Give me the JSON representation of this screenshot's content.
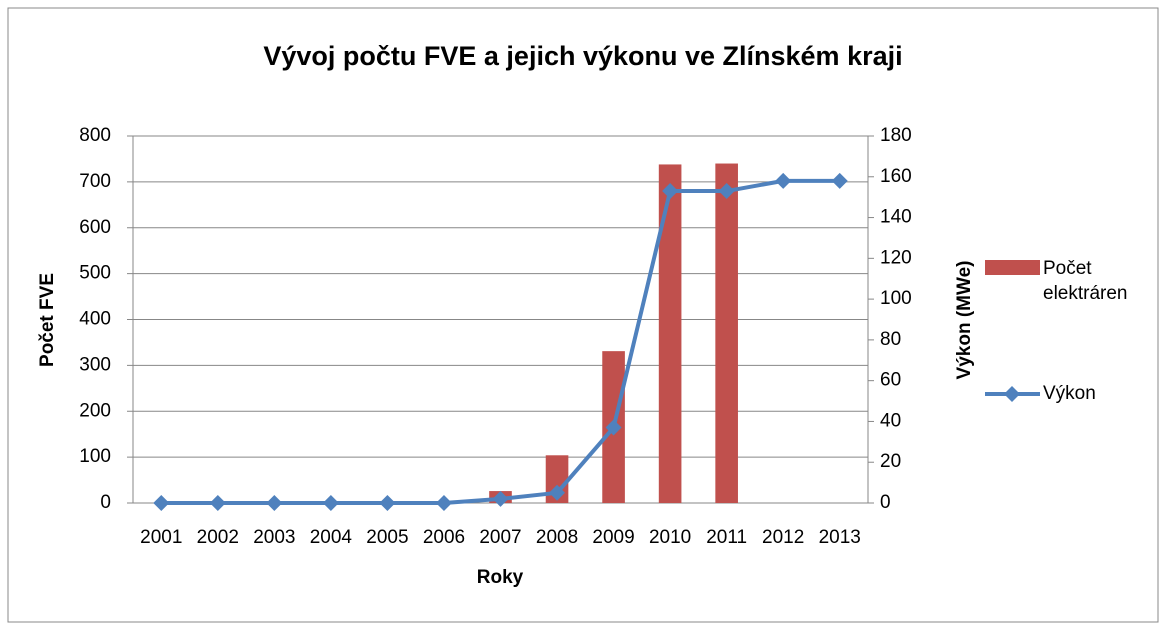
{
  "chart_data": {
    "type": "combo",
    "title": "Vývoj počtu FVE a jejich výkonu ve Zlínském kraji",
    "xlabel": "Roky",
    "ylabel": "Počet FVE",
    "y2label": "Výkon (MWe)",
    "categories": [
      "2001",
      "2002",
      "2003",
      "2004",
      "2005",
      "2006",
      "2007",
      "2008",
      "2009",
      "2010",
      "2011",
      "2012",
      "2013"
    ],
    "series": [
      {
        "name": "Počet elektráren",
        "type": "bar",
        "color": "#c0504d",
        "values": [
          0,
          0,
          0,
          0,
          0,
          0,
          26,
          104,
          331,
          738,
          740,
          0,
          0
        ]
      },
      {
        "name": "Výkon",
        "type": "line",
        "color": "#4f81bd",
        "axis": "y2",
        "values": [
          0,
          0,
          0,
          0,
          0,
          0,
          2,
          5,
          37,
          153,
          153,
          158,
          158
        ]
      }
    ],
    "ylim": [
      0,
      800
    ],
    "yticks": [
      0,
      100,
      200,
      300,
      400,
      500,
      600,
      700,
      800
    ],
    "y2lim": [
      0,
      180
    ],
    "y2ticks": [
      0,
      20,
      40,
      60,
      80,
      100,
      120,
      140,
      160,
      180
    ],
    "grid": true,
    "legend": "right"
  }
}
